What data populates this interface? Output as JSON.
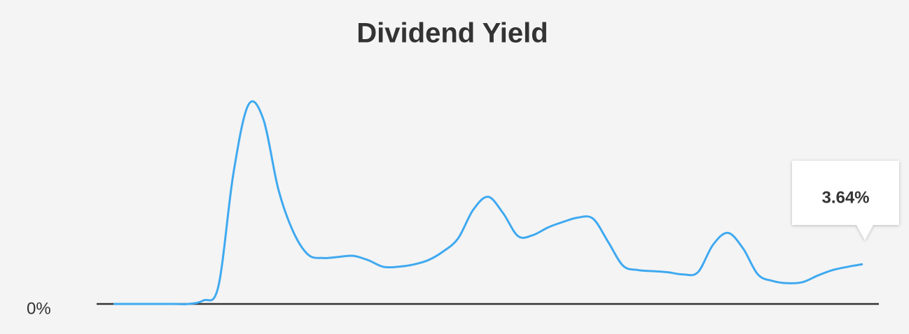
{
  "chart_data": {
    "type": "line",
    "title": "Dividend Yield",
    "series": [
      {
        "color": "#3fa9f0",
        "values": [
          0,
          0,
          0,
          0,
          0,
          0,
          0.32,
          1.6,
          11.9,
          18.2,
          16.9,
          10.5,
          6.6,
          4.5,
          4.2,
          4.3,
          4.4,
          4.0,
          3.4,
          3.4,
          3.6,
          4.0,
          4.8,
          6.0,
          8.6,
          9.8,
          8.3,
          6.2,
          6.3,
          7.0,
          7.5,
          7.9,
          7.8,
          5.7,
          3.5,
          3.1,
          3.0,
          2.9,
          2.7,
          2.9,
          5.4,
          6.5,
          5.1,
          2.7,
          2.1,
          1.9,
          2.0,
          2.6,
          3.1,
          3.4,
          3.64
        ],
        "value_labels": [
          null,
          null,
          null,
          null,
          null,
          null,
          null,
          null,
          null,
          null,
          null,
          null,
          null,
          null,
          null,
          null,
          null,
          null,
          null,
          null,
          null,
          null,
          null,
          null,
          null,
          null,
          null,
          null,
          null,
          null,
          null,
          null,
          null,
          null,
          null,
          null,
          null,
          null,
          null,
          null,
          null,
          null,
          null,
          null,
          null,
          null,
          null,
          null,
          null,
          null,
          "3.64%"
        ]
      }
    ],
    "ylim": [
      0,
      20
    ],
    "yticks": [
      {
        "value": 0,
        "label": "0%"
      }
    ]
  }
}
